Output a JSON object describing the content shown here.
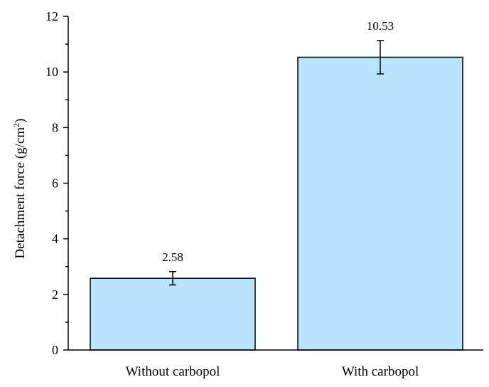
{
  "chart_data": {
    "type": "bar",
    "categories": [
      "Without carbopol",
      "With carbopol"
    ],
    "values": [
      2.58,
      10.53
    ],
    "error": [
      0.24,
      0.6
    ],
    "data_labels": [
      "2.58",
      "10.53"
    ],
    "ylabel": {
      "main": "Detachment force (g/cm",
      "sup": "2",
      "end": ")"
    },
    "ylim": [
      0,
      12
    ],
    "yticks": [
      0,
      2,
      4,
      6,
      8,
      10,
      12
    ],
    "yticks_text": [
      "0",
      "2",
      "4",
      "6",
      "8",
      "10",
      "12"
    ],
    "grid": false,
    "legend": "none",
    "bar_color": "#b9e4fd",
    "bar_edge_color": "#000000"
  }
}
